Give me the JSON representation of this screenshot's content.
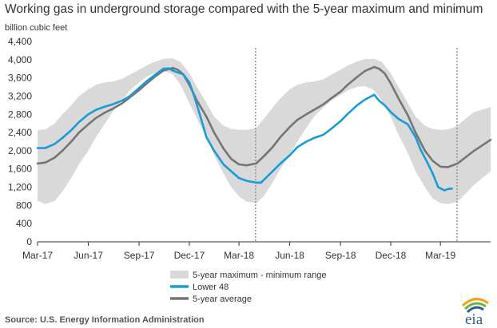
{
  "title": "Working gas in underground storage compared with the 5-year maximum and minimum",
  "y_unit": "billion cubic feet",
  "source": "Source:  U.S. Energy Information Administration",
  "logo_text": "eia",
  "colors": {
    "range_band": "#d9d9d9",
    "lower48": "#1a9bd6",
    "avg": "#757575",
    "dotted": "#9a9a9a"
  },
  "chart_data": {
    "type": "line",
    "x_ticks": [
      "Mar-17",
      "Jun-17",
      "Sep-17",
      "Dec-17",
      "Mar-18",
      "Jun-18",
      "Sep-18",
      "Dec-18",
      "Mar-19"
    ],
    "y_ticks": [
      "0",
      "400",
      "800",
      "1,200",
      "1,600",
      "2,000",
      "2,400",
      "2,800",
      "3,200",
      "3,600",
      "4,000",
      "4,400"
    ],
    "ylim": [
      0,
      4400
    ],
    "xlim": [
      "2017-03-01",
      "2019-05-31"
    ],
    "grid": false,
    "legend_position": "bottom-left",
    "markers": [
      "2018-03-31",
      "2019-03-31"
    ],
    "series": [
      {
        "name": "5-year maximum - minimum range",
        "type": "band",
        "upper": [
          [
            "2017-03-01",
            2450
          ],
          [
            "2017-03-15",
            2470
          ],
          [
            "2017-04-01",
            2600
          ],
          [
            "2017-04-15",
            2800
          ],
          [
            "2017-05-01",
            3000
          ],
          [
            "2017-05-15",
            3200
          ],
          [
            "2017-06-01",
            3350
          ],
          [
            "2017-06-15",
            3450
          ],
          [
            "2017-07-01",
            3500
          ],
          [
            "2017-07-15",
            3520
          ],
          [
            "2017-08-01",
            3580
          ],
          [
            "2017-08-15",
            3670
          ],
          [
            "2017-09-01",
            3780
          ],
          [
            "2017-09-15",
            3880
          ],
          [
            "2017-10-01",
            3960
          ],
          [
            "2017-10-15",
            4020
          ],
          [
            "2017-11-01",
            4030
          ],
          [
            "2017-11-15",
            3950
          ],
          [
            "2017-12-01",
            3700
          ],
          [
            "2017-12-15",
            3400
          ],
          [
            "2018-01-01",
            3050
          ],
          [
            "2018-01-15",
            2750
          ],
          [
            "2018-02-01",
            2550
          ],
          [
            "2018-02-15",
            2480
          ],
          [
            "2018-03-01",
            2460
          ],
          [
            "2018-03-15",
            2460
          ],
          [
            "2018-04-01",
            2500
          ],
          [
            "2018-04-15",
            2700
          ],
          [
            "2018-05-01",
            2950
          ],
          [
            "2018-05-15",
            3150
          ],
          [
            "2018-06-01",
            3350
          ],
          [
            "2018-06-15",
            3450
          ],
          [
            "2018-07-01",
            3500
          ],
          [
            "2018-07-15",
            3520
          ],
          [
            "2018-08-01",
            3570
          ],
          [
            "2018-08-15",
            3670
          ],
          [
            "2018-09-01",
            3780
          ],
          [
            "2018-09-15",
            3880
          ],
          [
            "2018-10-01",
            3960
          ],
          [
            "2018-10-15",
            4010
          ],
          [
            "2018-11-01",
            4020
          ],
          [
            "2018-11-15",
            3950
          ],
          [
            "2018-12-01",
            3700
          ],
          [
            "2018-12-15",
            3400
          ],
          [
            "2019-01-01",
            3050
          ],
          [
            "2019-01-15",
            2750
          ],
          [
            "2019-02-01",
            2550
          ],
          [
            "2019-02-15",
            2480
          ],
          [
            "2019-03-01",
            2460
          ],
          [
            "2019-03-15",
            2470
          ],
          [
            "2019-04-01",
            2550
          ],
          [
            "2019-04-15",
            2700
          ],
          [
            "2019-05-01",
            2850
          ],
          [
            "2019-05-31",
            2960
          ]
        ],
        "lower": [
          [
            "2017-03-01",
            900
          ],
          [
            "2017-03-15",
            830
          ],
          [
            "2017-04-01",
            900
          ],
          [
            "2017-04-15",
            1100
          ],
          [
            "2017-05-01",
            1400
          ],
          [
            "2017-05-15",
            1700
          ],
          [
            "2017-06-01",
            2000
          ],
          [
            "2017-06-15",
            2300
          ],
          [
            "2017-07-01",
            2600
          ],
          [
            "2017-07-15",
            2850
          ],
          [
            "2017-08-01",
            3100
          ],
          [
            "2017-08-15",
            3320
          ],
          [
            "2017-09-01",
            3500
          ],
          [
            "2017-09-15",
            3630
          ],
          [
            "2017-10-01",
            3720
          ],
          [
            "2017-10-15",
            3760
          ],
          [
            "2017-11-01",
            3680
          ],
          [
            "2017-11-15",
            3450
          ],
          [
            "2017-12-01",
            3050
          ],
          [
            "2017-12-15",
            2700
          ],
          [
            "2018-01-01",
            2300
          ],
          [
            "2018-01-15",
            1900
          ],
          [
            "2018-02-01",
            1500
          ],
          [
            "2018-02-15",
            1200
          ],
          [
            "2018-03-01",
            1000
          ],
          [
            "2018-03-15",
            880
          ],
          [
            "2018-04-01",
            850
          ],
          [
            "2018-04-15",
            1000
          ],
          [
            "2018-05-01",
            1300
          ],
          [
            "2018-05-15",
            1600
          ],
          [
            "2018-06-01",
            1900
          ],
          [
            "2018-06-15",
            2200
          ],
          [
            "2018-07-01",
            2500
          ],
          [
            "2018-07-15",
            2750
          ],
          [
            "2018-08-01",
            2950
          ],
          [
            "2018-08-15",
            3100
          ],
          [
            "2018-09-01",
            3230
          ],
          [
            "2018-09-15",
            3330
          ],
          [
            "2018-10-01",
            3400
          ],
          [
            "2018-10-15",
            3420
          ],
          [
            "2018-11-01",
            3330
          ],
          [
            "2018-11-15",
            3100
          ],
          [
            "2018-12-01",
            2750
          ],
          [
            "2018-12-15",
            2350
          ],
          [
            "2019-01-01",
            1950
          ],
          [
            "2019-01-15",
            1550
          ],
          [
            "2019-02-01",
            1200
          ],
          [
            "2019-02-15",
            950
          ],
          [
            "2019-03-01",
            850
          ],
          [
            "2019-03-15",
            830
          ],
          [
            "2019-04-01",
            880
          ],
          [
            "2019-04-15",
            1050
          ],
          [
            "2019-05-01",
            1250
          ],
          [
            "2019-05-31",
            1550
          ]
        ]
      },
      {
        "name": "Lower 48",
        "type": "line",
        "points": [
          [
            "2017-03-01",
            2060
          ],
          [
            "2017-03-15",
            2060
          ],
          [
            "2017-04-01",
            2150
          ],
          [
            "2017-04-15",
            2280
          ],
          [
            "2017-05-01",
            2450
          ],
          [
            "2017-05-15",
            2630
          ],
          [
            "2017-06-01",
            2800
          ],
          [
            "2017-06-15",
            2900
          ],
          [
            "2017-07-01",
            2970
          ],
          [
            "2017-07-15",
            3020
          ],
          [
            "2017-08-01",
            3100
          ],
          [
            "2017-08-15",
            3200
          ],
          [
            "2017-09-01",
            3380
          ],
          [
            "2017-09-15",
            3530
          ],
          [
            "2017-10-01",
            3680
          ],
          [
            "2017-10-15",
            3800
          ],
          [
            "2017-10-25",
            3810
          ],
          [
            "2017-11-01",
            3760
          ],
          [
            "2017-11-10",
            3720
          ],
          [
            "2017-11-20",
            3680
          ],
          [
            "2017-12-01",
            3500
          ],
          [
            "2017-12-10",
            3200
          ],
          [
            "2017-12-20",
            2800
          ],
          [
            "2018-01-01",
            2300
          ],
          [
            "2018-01-15",
            2000
          ],
          [
            "2018-02-01",
            1700
          ],
          [
            "2018-02-15",
            1550
          ],
          [
            "2018-03-01",
            1400
          ],
          [
            "2018-03-15",
            1340
          ],
          [
            "2018-04-01",
            1300
          ],
          [
            "2018-04-10",
            1300
          ],
          [
            "2018-04-20",
            1420
          ],
          [
            "2018-05-01",
            1550
          ],
          [
            "2018-05-15",
            1720
          ],
          [
            "2018-06-01",
            1900
          ],
          [
            "2018-06-15",
            2080
          ],
          [
            "2018-07-01",
            2200
          ],
          [
            "2018-07-15",
            2280
          ],
          [
            "2018-08-01",
            2350
          ],
          [
            "2018-08-15",
            2480
          ],
          [
            "2018-09-01",
            2650
          ],
          [
            "2018-09-15",
            2820
          ],
          [
            "2018-10-01",
            3000
          ],
          [
            "2018-10-15",
            3120
          ],
          [
            "2018-11-01",
            3230
          ],
          [
            "2018-11-10",
            3100
          ],
          [
            "2018-11-20",
            3000
          ],
          [
            "2018-12-01",
            2850
          ],
          [
            "2018-12-15",
            2700
          ],
          [
            "2019-01-01",
            2580
          ],
          [
            "2019-01-15",
            2300
          ],
          [
            "2019-01-25",
            2000
          ],
          [
            "2019-02-05",
            1750
          ],
          [
            "2019-02-15",
            1500
          ],
          [
            "2019-02-25",
            1200
          ],
          [
            "2019-03-08",
            1130
          ],
          [
            "2019-03-15",
            1160
          ],
          [
            "2019-03-22",
            1170
          ]
        ]
      },
      {
        "name": "5-year average",
        "type": "line",
        "points": [
          [
            "2017-03-01",
            1720
          ],
          [
            "2017-03-15",
            1740
          ],
          [
            "2017-04-01",
            1850
          ],
          [
            "2017-04-15",
            2000
          ],
          [
            "2017-05-01",
            2200
          ],
          [
            "2017-05-15",
            2400
          ],
          [
            "2017-06-01",
            2580
          ],
          [
            "2017-06-15",
            2720
          ],
          [
            "2017-07-01",
            2840
          ],
          [
            "2017-07-15",
            2920
          ],
          [
            "2017-08-01",
            3040
          ],
          [
            "2017-08-15",
            3170
          ],
          [
            "2017-09-01",
            3330
          ],
          [
            "2017-09-15",
            3480
          ],
          [
            "2017-10-01",
            3640
          ],
          [
            "2017-10-15",
            3760
          ],
          [
            "2017-11-01",
            3820
          ],
          [
            "2017-11-10",
            3780
          ],
          [
            "2017-11-20",
            3680
          ],
          [
            "2017-12-01",
            3450
          ],
          [
            "2017-12-15",
            3100
          ],
          [
            "2018-01-01",
            2750
          ],
          [
            "2018-01-15",
            2400
          ],
          [
            "2018-02-01",
            2050
          ],
          [
            "2018-02-15",
            1820
          ],
          [
            "2018-03-01",
            1700
          ],
          [
            "2018-03-15",
            1680
          ],
          [
            "2018-04-01",
            1720
          ],
          [
            "2018-04-15",
            1880
          ],
          [
            "2018-05-01",
            2080
          ],
          [
            "2018-05-15",
            2300
          ],
          [
            "2018-06-01",
            2520
          ],
          [
            "2018-06-15",
            2680
          ],
          [
            "2018-07-01",
            2800
          ],
          [
            "2018-07-15",
            2900
          ],
          [
            "2018-08-01",
            3020
          ],
          [
            "2018-08-15",
            3150
          ],
          [
            "2018-09-01",
            3300
          ],
          [
            "2018-09-15",
            3460
          ],
          [
            "2018-10-01",
            3620
          ],
          [
            "2018-10-15",
            3750
          ],
          [
            "2018-11-01",
            3840
          ],
          [
            "2018-11-10",
            3800
          ],
          [
            "2018-11-20",
            3700
          ],
          [
            "2018-12-01",
            3480
          ],
          [
            "2018-12-15",
            3150
          ],
          [
            "2019-01-01",
            2780
          ],
          [
            "2019-01-15",
            2400
          ],
          [
            "2019-02-01",
            2000
          ],
          [
            "2019-02-15",
            1780
          ],
          [
            "2019-03-01",
            1650
          ],
          [
            "2019-03-15",
            1640
          ],
          [
            "2019-04-01",
            1720
          ],
          [
            "2019-04-15",
            1850
          ],
          [
            "2019-05-01",
            2000
          ],
          [
            "2019-05-31",
            2240
          ]
        ]
      }
    ]
  }
}
